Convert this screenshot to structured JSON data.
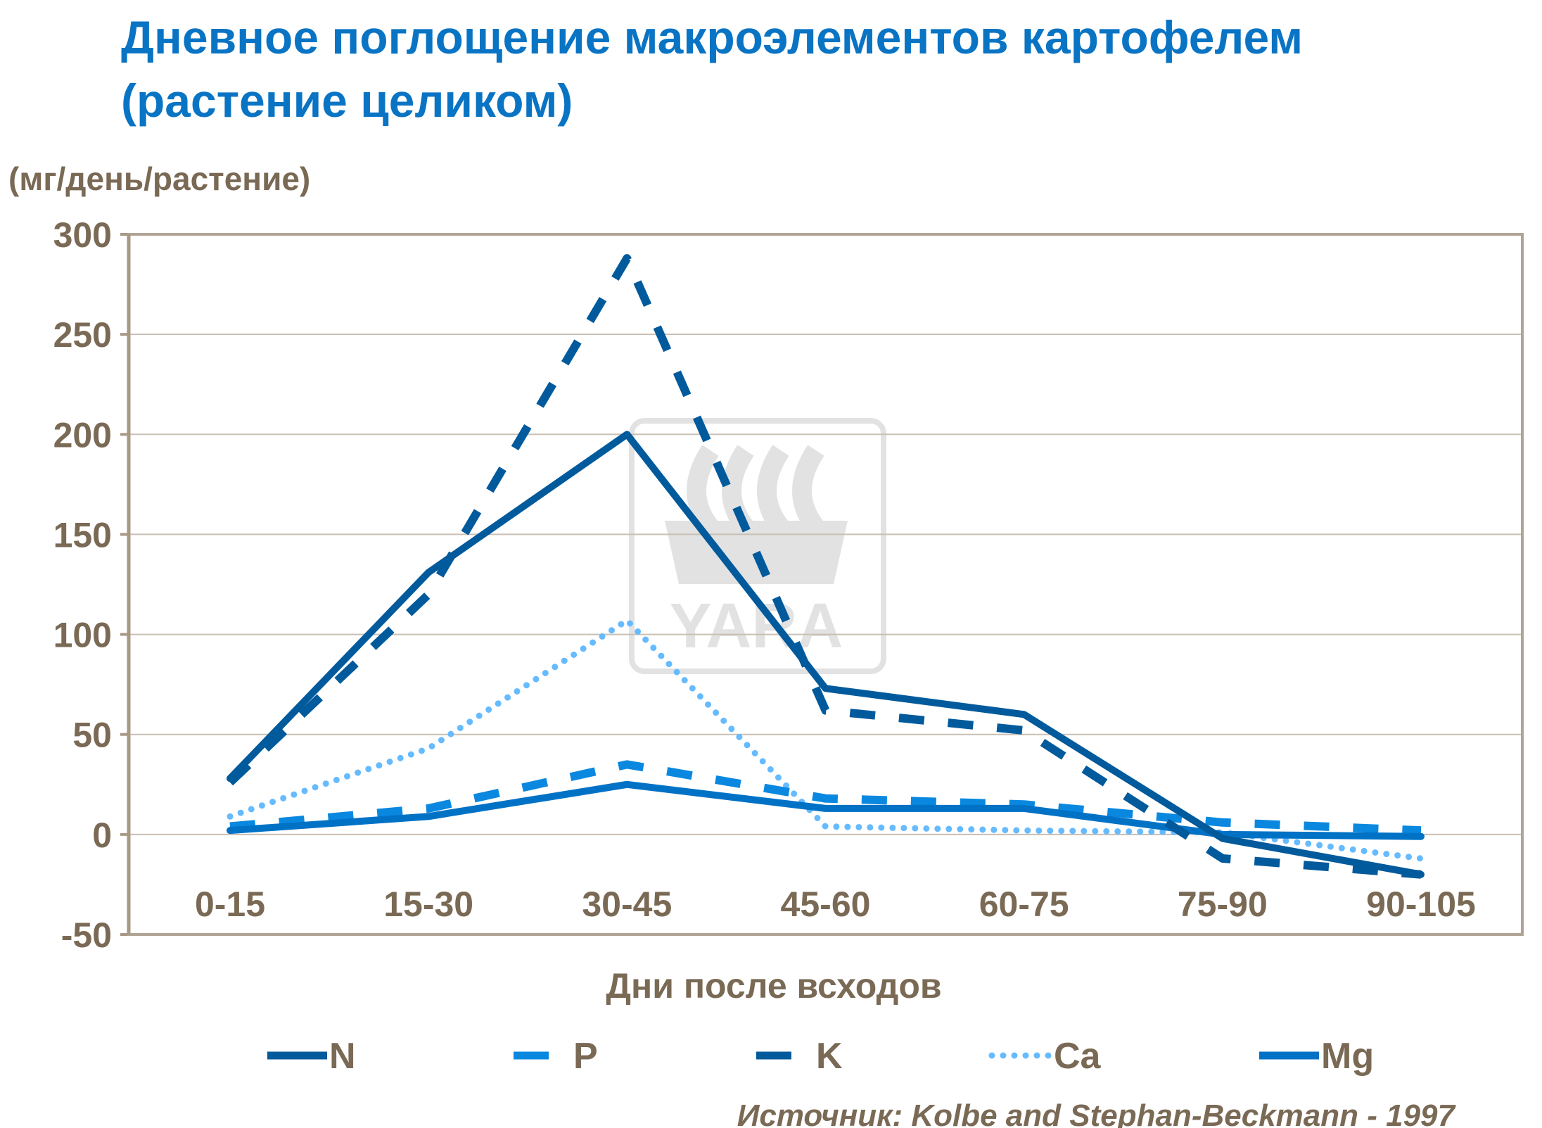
{
  "chart_data": {
    "type": "line",
    "title_line1": "Дневное поглощение макроэлементов картофелем",
    "title_line2": "(растение целиком)",
    "ylabel": "(мг/день/растение)",
    "xlabel": "Дни после всходов",
    "categories": [
      "0-15",
      "15-30",
      "30-45",
      "45-60",
      "60-75",
      "75-90",
      "90-105"
    ],
    "ylim": [
      -50,
      300
    ],
    "yticks": [
      "300",
      "250",
      "200",
      "150",
      "100",
      "50",
      "0",
      "-50"
    ],
    "ytick_values": [
      300,
      250,
      200,
      150,
      100,
      50,
      0,
      -50
    ],
    "grid": true,
    "legend_position": "bottom",
    "series": [
      {
        "name": "N",
        "style": "solid",
        "color": "#005a9c",
        "values": [
          28,
          131,
          200,
          73,
          60,
          -2,
          -20
        ]
      },
      {
        "name": "P",
        "style": "dashed",
        "color": "#0a88e0",
        "values": [
          4,
          13,
          35,
          18,
          15,
          6,
          2
        ]
      },
      {
        "name": "K",
        "style": "dashed",
        "color": "#005a9c",
        "values": [
          26,
          120,
          288,
          62,
          52,
          -12,
          -20
        ]
      },
      {
        "name": "Ca",
        "style": "dotted",
        "color": "#66bbff",
        "values": [
          9,
          43,
          107,
          4,
          2,
          1,
          -12
        ]
      },
      {
        "name": "Mg",
        "style": "solid",
        "color": "#0072c6",
        "values": [
          2,
          9,
          25,
          13,
          13,
          0,
          -1
        ]
      }
    ],
    "source": "Источник: Kolbe and Stephan-Beckmann - 1997",
    "watermark": "YARA"
  }
}
